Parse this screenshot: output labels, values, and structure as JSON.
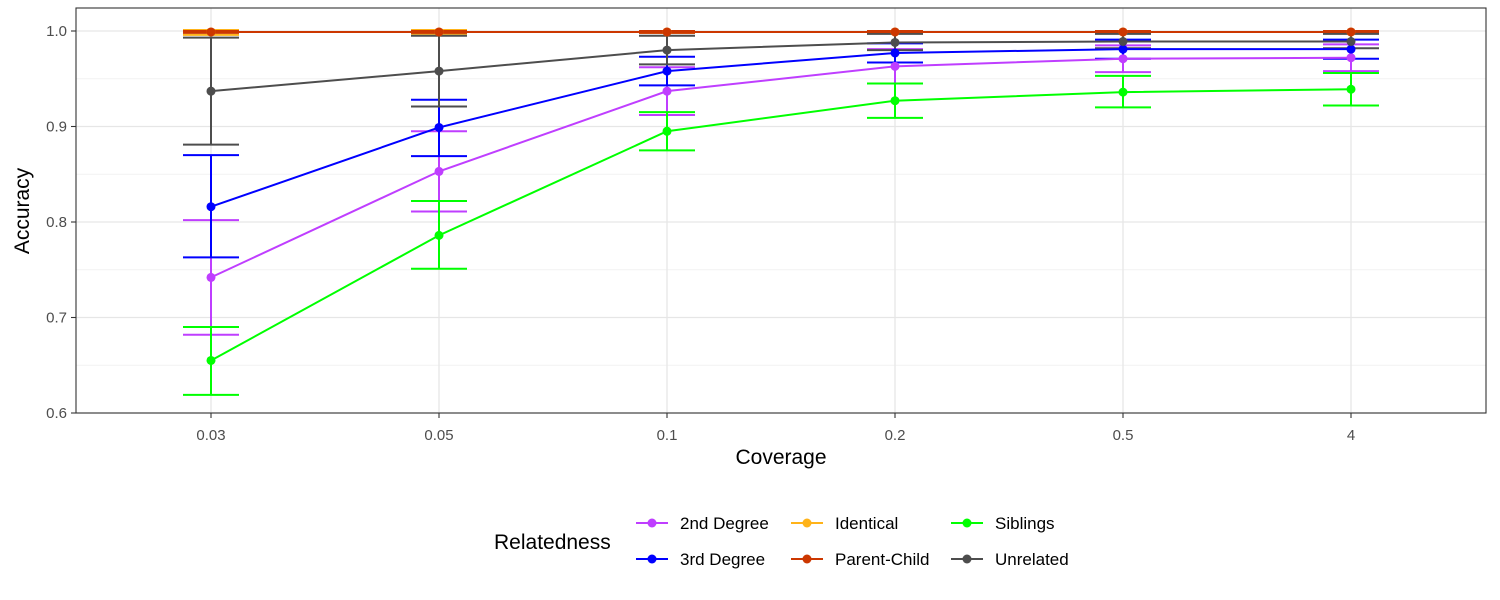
{
  "chart_data": {
    "type": "line",
    "x_type": "categorical",
    "categories": [
      "0.03",
      "0.05",
      "0.1",
      "0.2",
      "0.5",
      "4"
    ],
    "xlabel": "Coverage",
    "ylabel": "Accuracy",
    "ylim": [
      0.6,
      1.0
    ],
    "yticks": [
      "0.6",
      "0.7",
      "0.8",
      "0.9",
      "1.0"
    ],
    "grid": true,
    "error_bars": true,
    "legend": {
      "title": "Relatedness",
      "position": "bottom"
    },
    "series": [
      {
        "name": "2nd Degree",
        "color": "#bf3eff",
        "values": [
          0.742,
          0.853,
          0.937,
          0.963,
          0.971,
          0.972
        ],
        "lower": [
          0.682,
          0.811,
          0.912,
          0.945,
          0.957,
          0.958
        ],
        "upper": [
          0.802,
          0.895,
          0.962,
          0.981,
          0.985,
          0.986
        ]
      },
      {
        "name": "3rd Degree",
        "color": "#0000ff",
        "values": [
          0.816,
          0.899,
          0.958,
          0.977,
          0.981,
          0.981
        ],
        "lower": [
          0.763,
          0.869,
          0.943,
          0.967,
          0.971,
          0.971
        ],
        "upper": [
          0.87,
          0.928,
          0.973,
          0.987,
          0.991,
          0.991
        ]
      },
      {
        "name": "Identical",
        "color": "#ffb319",
        "values": [
          0.999,
          0.999,
          0.999,
          0.999,
          0.999,
          0.999
        ],
        "lower": [
          0.996,
          0.997,
          0.998,
          0.998,
          0.998,
          0.998
        ],
        "upper": [
          1.001,
          1.001,
          1.0,
          1.0,
          1.0,
          1.0
        ]
      },
      {
        "name": "Parent-Child",
        "color": "#cc3700",
        "values": [
          0.999,
          0.999,
          0.999,
          0.999,
          0.999,
          0.999
        ],
        "lower": [
          0.998,
          0.998,
          0.998,
          0.998,
          0.998,
          0.998
        ],
        "upper": [
          1.0,
          1.0,
          1.0,
          1.0,
          1.0,
          1.0
        ]
      },
      {
        "name": "Siblings",
        "color": "#00ff00",
        "values": [
          0.655,
          0.786,
          0.895,
          0.927,
          0.936,
          0.939
        ],
        "lower": [
          0.619,
          0.751,
          0.875,
          0.909,
          0.92,
          0.922
        ],
        "upper": [
          0.69,
          0.822,
          0.915,
          0.945,
          0.953,
          0.956
        ]
      },
      {
        "name": "Unrelated",
        "color": "#4d4d4d",
        "values": [
          0.937,
          0.958,
          0.98,
          0.988,
          0.989,
          0.989
        ],
        "lower": [
          0.881,
          0.921,
          0.965,
          0.98,
          0.982,
          0.982
        ],
        "upper": [
          0.993,
          0.995,
          0.995,
          0.997,
          0.997,
          0.997
        ]
      }
    ]
  }
}
